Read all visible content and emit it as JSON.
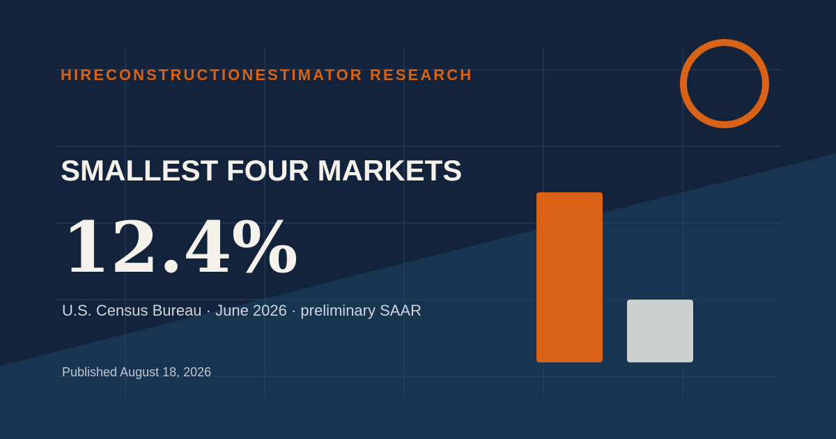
{
  "brand_text": "HIRECONSTRUCTIONESTIMATOR RESEARCH",
  "headline": "SMALLEST FOUR MARKETS",
  "stat_value": "12.4%",
  "source_line": "U.S. Census Bureau · June 2026 · preliminary SAAR",
  "published_line": "Published August 18, 2026",
  "colors": {
    "background_top": "#13233c",
    "background_lower_panel": "#173451",
    "grid_line": "#2b4360",
    "accent_orange": "#d86316",
    "bar_secondary": "#ccd0cf",
    "headline_text": "#f3f1ea",
    "source_text": "#cfd5dd",
    "published_text": "#bfc7d1"
  },
  "chart_data": {
    "type": "bar",
    "categories": [
      "",
      ""
    ],
    "values": [
      244,
      90
    ],
    "title": "",
    "xlabel": "",
    "ylabel": "",
    "axis_labels_shown": false,
    "grid": true
  }
}
